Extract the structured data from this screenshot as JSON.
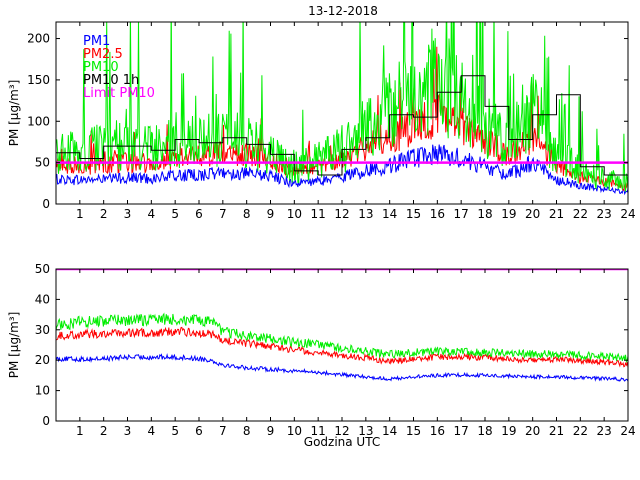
{
  "chart_data": [
    {
      "type": "line",
      "title": "13-12-2018",
      "xlabel": "",
      "ylabel": "PM [µg/m³]",
      "xlim": [
        0,
        24
      ],
      "ylim": [
        0,
        220
      ],
      "x_ticks": [
        "1",
        "2",
        "3",
        "4",
        "5",
        "6",
        "7",
        "8",
        "9",
        "10",
        "11",
        "12",
        "13",
        "14",
        "15",
        "16",
        "17",
        "18",
        "19",
        "20",
        "21",
        "22",
        "23",
        "24"
      ],
      "y_ticks": [
        "0",
        "50",
        "100",
        "150",
        "200"
      ],
      "legend_position": "top-left",
      "series": [
        {
          "name": "PM1",
          "color": "#0000ff",
          "style": "line",
          "x": [
            0,
            1,
            2,
            3,
            4,
            5,
            6,
            7,
            8,
            9,
            10,
            11,
            12,
            13,
            14,
            15,
            16,
            17,
            18,
            19,
            20,
            21,
            22,
            23,
            24
          ],
          "values": [
            30,
            29,
            30,
            32,
            31,
            34,
            35,
            38,
            36,
            34,
            25,
            27,
            33,
            40,
            47,
            55,
            60,
            55,
            45,
            35,
            50,
            30,
            22,
            18,
            15
          ]
        },
        {
          "name": "PM2.5",
          "color": "#ff0000",
          "style": "line",
          "x": [
            0,
            1,
            2,
            3,
            4,
            5,
            6,
            7,
            8,
            9,
            10,
            11,
            12,
            13,
            14,
            15,
            16,
            17,
            18,
            19,
            20,
            21,
            22,
            23,
            24
          ],
          "values": [
            47,
            46,
            48,
            50,
            50,
            56,
            58,
            62,
            60,
            56,
            40,
            44,
            54,
            68,
            80,
            92,
            108,
            95,
            78,
            58,
            80,
            50,
            32,
            26,
            20
          ]
        },
        {
          "name": "PM10",
          "color": "#00ee00",
          "style": "line",
          "x": [
            0,
            1,
            2,
            3,
            4,
            5,
            6,
            7,
            8,
            9,
            10,
            11,
            12,
            13,
            14,
            15,
            16,
            17,
            18,
            19,
            20,
            21,
            22,
            23,
            24
          ],
          "values": [
            65,
            58,
            70,
            70,
            66,
            78,
            74,
            82,
            74,
            62,
            45,
            52,
            66,
            90,
            110,
            135,
            160,
            125,
            95,
            72,
            120,
            60,
            40,
            30,
            25
          ]
        },
        {
          "name": "PM10 1h",
          "color": "#000000",
          "style": "step",
          "values": [
            62,
            55,
            70,
            70,
            65,
            78,
            74,
            80,
            72,
            60,
            40,
            35,
            66,
            80,
            108,
            105,
            135,
            155,
            118,
            78,
            108,
            132,
            45,
            35
          ]
        },
        {
          "name": "Limit PM10",
          "color": "#ff00ff",
          "style": "hline",
          "value": 50
        }
      ]
    },
    {
      "type": "line",
      "title": "",
      "xlabel": "Godzina UTC",
      "ylabel": "PM [µg/m³]",
      "xlim": [
        0,
        24
      ],
      "ylim": [
        0,
        50
      ],
      "x_ticks": [
        "1",
        "2",
        "3",
        "4",
        "5",
        "6",
        "7",
        "8",
        "9",
        "10",
        "11",
        "12",
        "13",
        "14",
        "15",
        "16",
        "17",
        "18",
        "19",
        "20",
        "21",
        "22",
        "23",
        "24"
      ],
      "y_ticks": [
        "0",
        "10",
        "20",
        "30",
        "40",
        "50"
      ],
      "series": [
        {
          "name": "PM1",
          "color": "#0000ff",
          "style": "line",
          "x": [
            0,
            1,
            2,
            3,
            4,
            5,
            6,
            6.5,
            7,
            8,
            9,
            10,
            11,
            12,
            13,
            14,
            15,
            16,
            17,
            18,
            19,
            20,
            21,
            22,
            23,
            24
          ],
          "values": [
            20.5,
            20.3,
            20.5,
            21,
            21,
            21,
            20.5,
            20,
            18.5,
            17.5,
            17,
            16.5,
            16,
            15.2,
            14.5,
            13.8,
            14.5,
            15,
            15.2,
            15,
            14.8,
            14.5,
            14.5,
            14.2,
            14,
            13.5
          ]
        },
        {
          "name": "PM2.5",
          "color": "#ff0000",
          "style": "line",
          "x": [
            0,
            1,
            2,
            3,
            4,
            5,
            6,
            6.5,
            7,
            8,
            9,
            10,
            11,
            12,
            13,
            14,
            15,
            16,
            17,
            18,
            19,
            20,
            21,
            22,
            23,
            24
          ],
          "values": [
            28,
            28.5,
            28.8,
            29,
            29,
            29.5,
            29,
            28.5,
            26.5,
            25.5,
            24.5,
            23.5,
            22.5,
            21.5,
            20.8,
            19.5,
            20.5,
            21,
            21.2,
            20.8,
            20.5,
            20,
            20.3,
            20,
            19.5,
            18.5
          ]
        },
        {
          "name": "PM10",
          "color": "#00ee00",
          "style": "line",
          "x": [
            0,
            1,
            2,
            3,
            4,
            5,
            6,
            6.5,
            7,
            8,
            9,
            10,
            11,
            12,
            13,
            14,
            15,
            16,
            17,
            18,
            19,
            20,
            21,
            22,
            23,
            24
          ],
          "values": [
            31.5,
            32.5,
            33,
            33,
            33.5,
            33.5,
            33,
            32.5,
            29.5,
            28,
            27,
            26,
            25,
            24,
            23,
            22,
            22.5,
            23,
            23,
            22.5,
            22.5,
            22,
            22,
            21.5,
            21.5,
            20.5
          ]
        },
        {
          "name": "Limit PM10",
          "color": "#ff00ff",
          "style": "hline",
          "value": 50
        }
      ]
    }
  ],
  "legend": {
    "entries": [
      {
        "label": "PM1",
        "color": "#0000ff"
      },
      {
        "label": "PM2.5",
        "color": "#ff0000"
      },
      {
        "label": "PM10",
        "color": "#00ee00"
      },
      {
        "label": "PM10 1h",
        "color": "#000000"
      },
      {
        "label": "Limit PM10",
        "color": "#ff00ff"
      }
    ]
  }
}
